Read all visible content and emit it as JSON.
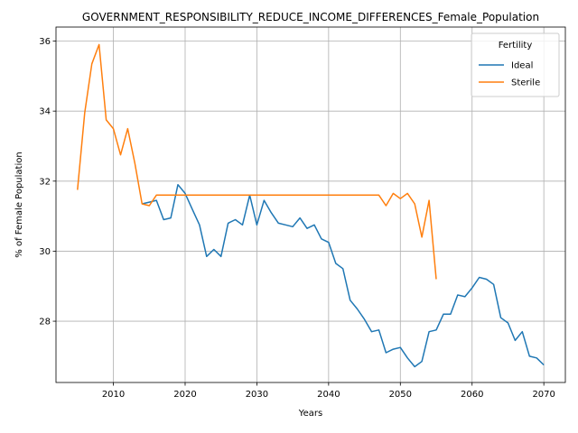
{
  "chart_data": {
    "type": "line",
    "title": "GOVERNMENT_RESPONSIBILITY_REDUCE_INCOME_DIFFERENCES_Female_Population",
    "xlabel": "Years",
    "ylabel": "% of Female Population",
    "xlim": [
      2002,
      2073
    ],
    "ylim": [
      26.25,
      36.4
    ],
    "xticks": [
      2010,
      2020,
      2030,
      2040,
      2050,
      2060,
      2070
    ],
    "yticks": [
      28,
      30,
      32,
      34,
      36
    ],
    "grid": true,
    "legend": {
      "title": "Fertility",
      "placement": "top-right"
    },
    "series": [
      {
        "name": "Ideal",
        "color": "#1f77b4",
        "x": [
          2014,
          2015,
          2016,
          2017,
          2018,
          2019,
          2020,
          2021,
          2022,
          2023,
          2024,
          2025,
          2026,
          2027,
          2028,
          2029,
          2030,
          2031,
          2032,
          2033,
          2034,
          2035,
          2036,
          2037,
          2038,
          2039,
          2040,
          2041,
          2042,
          2043,
          2044,
          2045,
          2046,
          2047,
          2048,
          2049,
          2050,
          2051,
          2052,
          2053,
          2054,
          2055,
          2056,
          2057,
          2058,
          2059,
          2060,
          2061,
          2062,
          2063,
          2064,
          2065,
          2066,
          2067,
          2068,
          2069,
          2070
        ],
        "y": [
          31.35,
          31.4,
          31.45,
          30.9,
          30.95,
          31.9,
          31.65,
          31.2,
          30.75,
          29.85,
          30.05,
          29.85,
          30.8,
          30.9,
          30.75,
          31.6,
          30.75,
          31.45,
          31.1,
          30.8,
          30.75,
          30.7,
          30.95,
          30.65,
          30.75,
          30.35,
          30.25,
          29.65,
          29.5,
          28.6,
          28.35,
          28.05,
          27.7,
          27.75,
          27.1,
          27.2,
          27.25,
          26.95,
          26.7,
          26.85,
          27.7,
          27.75,
          28.2,
          28.2,
          28.75,
          28.7,
          28.95,
          29.25,
          29.2,
          29.05,
          28.1,
          27.95,
          27.45,
          27.7,
          27.0,
          26.95,
          26.75
        ]
      },
      {
        "name": "Sterile",
        "color": "#ff7f0e",
        "x": [
          2005,
          2006,
          2007,
          2008,
          2009,
          2010,
          2011,
          2012,
          2013,
          2014,
          2015,
          2016,
          2017,
          2018,
          2019,
          2020,
          2021,
          2022,
          2023,
          2024,
          2025,
          2026,
          2027,
          2028,
          2029,
          2030,
          2031,
          2032,
          2033,
          2034,
          2035,
          2036,
          2037,
          2038,
          2039,
          2040,
          2041,
          2042,
          2043,
          2044,
          2045,
          2046,
          2047,
          2048,
          2049,
          2050,
          2051,
          2052,
          2053,
          2054,
          2055
        ],
        "y": [
          31.75,
          33.95,
          35.35,
          35.9,
          33.75,
          33.5,
          32.75,
          33.5,
          32.5,
          31.35,
          31.3,
          31.6,
          31.6,
          31.6,
          31.6,
          31.6,
          31.6,
          31.6,
          31.6,
          31.6,
          31.6,
          31.6,
          31.6,
          31.6,
          31.6,
          31.6,
          31.6,
          31.6,
          31.6,
          31.6,
          31.6,
          31.6,
          31.6,
          31.6,
          31.6,
          31.6,
          31.6,
          31.6,
          31.6,
          31.6,
          31.6,
          31.6,
          31.6,
          31.3,
          31.65,
          31.5,
          31.65,
          31.35,
          30.4,
          31.45,
          29.2
        ]
      }
    ]
  }
}
